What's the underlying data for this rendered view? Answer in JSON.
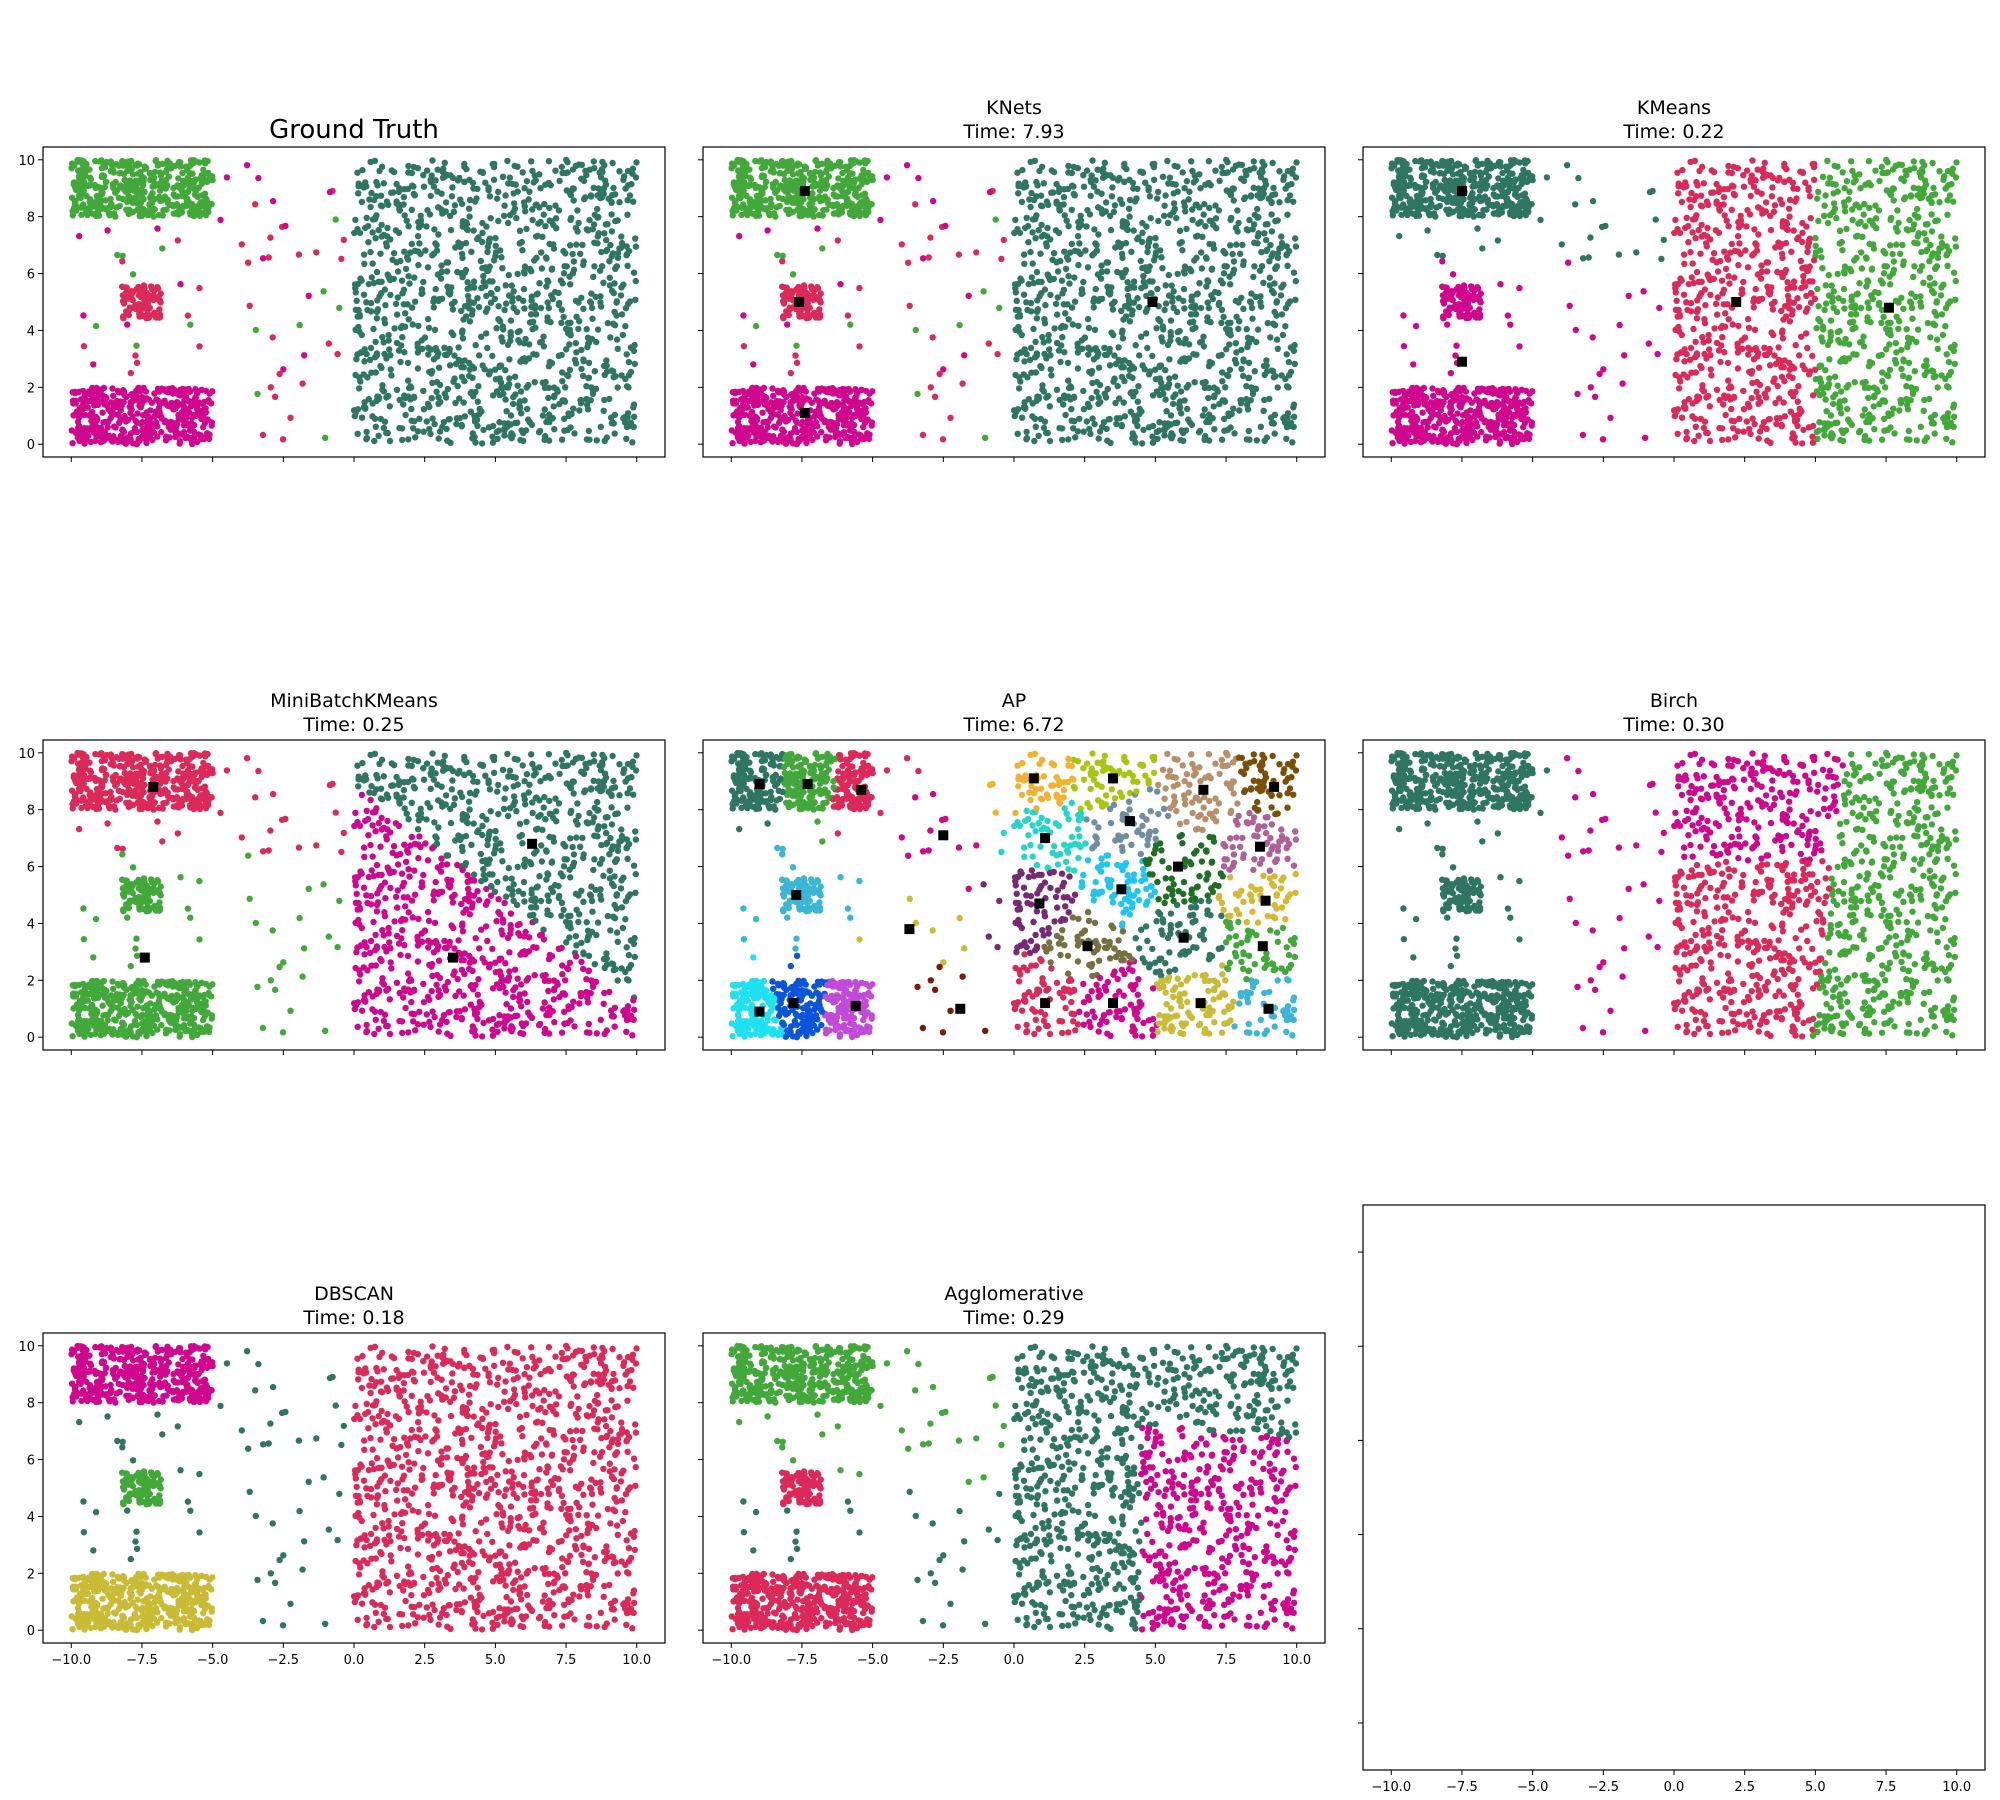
{
  "figure": {
    "color_palette": [
      "#2e7562",
      "#42a83a",
      "#db2a5a",
      "#d1068f",
      "#c9bb35",
      "#3bb6d6",
      "#1ee2f2",
      "#0b55d9",
      "#c24ad8",
      "#7a1a0b",
      "#f2b230",
      "#a7c70f",
      "#b7906a",
      "#7a5009",
      "#24d6c9",
      "#6f8fa0",
      "#ae6199",
      "#752a73",
      "#21c6f0",
      "#1f6e26",
      "#d8b833",
      "#767040"
    ]
  },
  "chart_data": [
    {
      "type": "scatter",
      "title": "Ground Truth",
      "subtitle": "",
      "xlim": [
        -11,
        11
      ],
      "ylim": [
        -0.45,
        10.45
      ],
      "xticks": [
        -10.0,
        -7.5,
        -5.0,
        -2.5,
        0.0,
        2.5,
        5.0,
        7.5,
        10.0
      ],
      "xtick_labels": [
        "",
        "",
        "",
        "",
        "",
        "",
        "",
        "",
        ""
      ],
      "yticks": [
        0,
        2,
        4,
        6,
        8,
        10
      ],
      "ytick_labels": [
        "0",
        "2",
        "4",
        "6",
        "8",
        "10"
      ],
      "partition": "gt",
      "series_colors": {
        "top": "#42a83a",
        "center": "#db2a5a",
        "bottom": "#d1068f",
        "noise": "#42a83a",
        "noise_alt": "#db2a5a",
        "noise_alt2": "#d1068f",
        "right": "#2e7562"
      },
      "centroids": []
    },
    {
      "type": "scatter",
      "title": "KNets",
      "subtitle": "Time: 7.93",
      "xlim": [
        -11,
        11
      ],
      "ylim": [
        -0.45,
        10.45
      ],
      "xticks": [
        -10.0,
        -7.5,
        -5.0,
        -2.5,
        0.0,
        2.5,
        5.0,
        7.5,
        10.0
      ],
      "xtick_labels": [
        "",
        "",
        "",
        "",
        "",
        "",
        "",
        "",
        ""
      ],
      "yticks": [
        0,
        2,
        4,
        6,
        8,
        10
      ],
      "ytick_labels": [
        "",
        "",
        "",
        "",
        "",
        ""
      ],
      "partition": "gt",
      "series_colors": {
        "top": "#42a83a",
        "center": "#db2a5a",
        "bottom": "#d1068f",
        "noise": "#42a83a",
        "noise_alt": "#db2a5a",
        "noise_alt2": "#d1068f",
        "right": "#2e7562"
      },
      "centroids": [
        [
          -7.4,
          8.9
        ],
        [
          -7.6,
          5.0
        ],
        [
          -7.4,
          1.1
        ],
        [
          4.9,
          5.0
        ]
      ]
    },
    {
      "type": "scatter",
      "title": "KMeans",
      "subtitle": "Time: 0.22",
      "xlim": [
        -11,
        11
      ],
      "ylim": [
        -0.45,
        10.45
      ],
      "xticks": [
        -10.0,
        -7.5,
        -5.0,
        -2.5,
        0.0,
        2.5,
        5.0,
        7.5,
        10.0
      ],
      "xtick_labels": [
        "",
        "",
        "",
        "",
        "",
        "",
        "",
        "",
        ""
      ],
      "yticks": [
        0,
        2,
        4,
        6,
        8,
        10
      ],
      "ytick_labels": [
        "",
        "",
        "",
        "",
        "",
        ""
      ],
      "partition": "kmeans",
      "series_colors": {
        "top": "#2e7562",
        "center": "#d1068f",
        "bottom": "#d1068f",
        "noise": "#2e7562",
        "noise_alt": "#d1068f",
        "noise_alt2": "#2e7562",
        "right_a": "#db2a5a",
        "right_b": "#42a83a"
      },
      "centroids": [
        [
          -7.5,
          8.9
        ],
        [
          -7.5,
          2.9
        ],
        [
          2.2,
          5.0
        ],
        [
          7.6,
          4.8
        ]
      ]
    },
    {
      "type": "scatter",
      "title": "MiniBatchKMeans",
      "subtitle": "Time: 0.25",
      "xlim": [
        -11,
        11
      ],
      "ylim": [
        -0.45,
        10.45
      ],
      "xticks": [
        -10.0,
        -7.5,
        -5.0,
        -2.5,
        0.0,
        2.5,
        5.0,
        7.5,
        10.0
      ],
      "xtick_labels": [
        "",
        "",
        "",
        "",
        "",
        "",
        "",
        "",
        ""
      ],
      "yticks": [
        0,
        2,
        4,
        6,
        8,
        10
      ],
      "ytick_labels": [
        "0",
        "2",
        "4",
        "6",
        "8",
        "10"
      ],
      "partition": "minibatch",
      "series_colors": {
        "top": "#db2a5a",
        "center": "#42a83a",
        "bottom": "#42a83a",
        "noise": "#42a83a",
        "noise_alt": "#db2a5a",
        "noise_alt2": "#42a83a",
        "right_a": "#2e7562",
        "right_b": "#d1068f"
      },
      "centroids": [
        [
          -7.1,
          8.8
        ],
        [
          -7.4,
          2.8
        ],
        [
          6.3,
          6.8
        ],
        [
          3.5,
          2.8
        ]
      ]
    },
    {
      "type": "scatter",
      "title": "AP",
      "subtitle": "Time: 6.72",
      "xlim": [
        -11,
        11
      ],
      "ylim": [
        -0.45,
        10.45
      ],
      "xticks": [
        -10.0,
        -7.5,
        -5.0,
        -2.5,
        0.0,
        2.5,
        5.0,
        7.5,
        10.0
      ],
      "xtick_labels": [
        "",
        "",
        "",
        "",
        "",
        "",
        "",
        "",
        ""
      ],
      "yticks": [
        0,
        2,
        4,
        6,
        8,
        10
      ],
      "ytick_labels": [
        "",
        "",
        "",
        "",
        "",
        ""
      ],
      "partition": "ap",
      "series_colors": {},
      "centroids": [
        [
          -9.0,
          8.9
        ],
        [
          -7.3,
          8.9
        ],
        [
          -5.4,
          8.7
        ],
        [
          -2.5,
          7.1
        ],
        [
          -3.7,
          3.8
        ],
        [
          -7.7,
          5.0
        ],
        [
          -9.0,
          0.9
        ],
        [
          -7.8,
          1.2
        ],
        [
          -5.6,
          1.1
        ],
        [
          -1.9,
          1.0
        ],
        [
          0.7,
          9.1
        ],
        [
          3.5,
          9.1
        ],
        [
          6.7,
          8.7
        ],
        [
          9.2,
          8.8
        ],
        [
          1.1,
          7.0
        ],
        [
          4.1,
          7.6
        ],
        [
          8.7,
          6.7
        ],
        [
          0.9,
          4.7
        ],
        [
          3.8,
          5.2
        ],
        [
          5.8,
          6.0
        ],
        [
          8.9,
          4.8
        ],
        [
          2.6,
          3.2
        ],
        [
          6.0,
          3.5
        ],
        [
          8.8,
          3.2
        ],
        [
          1.1,
          1.2
        ],
        [
          3.5,
          1.2
        ],
        [
          6.6,
          1.2
        ],
        [
          9.0,
          1.0
        ]
      ]
    },
    {
      "type": "scatter",
      "title": "Birch",
      "subtitle": "Time: 0.30",
      "xlim": [
        -11,
        11
      ],
      "ylim": [
        -0.45,
        10.45
      ],
      "xticks": [
        -10.0,
        -7.5,
        -5.0,
        -2.5,
        0.0,
        2.5,
        5.0,
        7.5,
        10.0
      ],
      "xtick_labels": [
        "",
        "",
        "",
        "",
        "",
        "",
        "",
        "",
        ""
      ],
      "yticks": [
        0,
        2,
        4,
        6,
        8,
        10
      ],
      "ytick_labels": [
        "",
        "",
        "",
        "",
        "",
        ""
      ],
      "partition": "birch",
      "series_colors": {
        "top": "#2e7562",
        "center": "#2e7562",
        "bottom": "#2e7562",
        "noise": "#2e7562",
        "noise_alt": "#d1068f",
        "noise_alt2": "#2e7562",
        "right_a": "#d1068f",
        "right_b": "#db2a5a",
        "right_c": "#42a83a"
      },
      "centroids": []
    },
    {
      "type": "scatter",
      "title": "DBSCAN",
      "subtitle": "Time: 0.18",
      "xlim": [
        -11,
        11
      ],
      "ylim": [
        -0.45,
        10.45
      ],
      "xticks": [
        -10.0,
        -7.5,
        -5.0,
        -2.5,
        0.0,
        2.5,
        5.0,
        7.5,
        10.0
      ],
      "xtick_labels": [
        "−10.0",
        "−7.5",
        "−5.0",
        "−2.5",
        "0.0",
        "2.5",
        "5.0",
        "7.5",
        "10.0"
      ],
      "yticks": [
        0,
        2,
        4,
        6,
        8,
        10
      ],
      "ytick_labels": [
        "0",
        "2",
        "4",
        "6",
        "8",
        "10"
      ],
      "partition": "gt",
      "series_colors": {
        "top": "#d1068f",
        "center": "#42a83a",
        "bottom": "#c9bb35",
        "noise": "#2e7562",
        "noise_alt": "#2e7562",
        "noise_alt2": "#2e7562",
        "right": "#db2a5a"
      },
      "centroids": []
    },
    {
      "type": "scatter",
      "title": "Agglomerative",
      "subtitle": "Time: 0.29",
      "xlim": [
        -11,
        11
      ],
      "ylim": [
        -0.45,
        10.45
      ],
      "xticks": [
        -10.0,
        -7.5,
        -5.0,
        -2.5,
        0.0,
        2.5,
        5.0,
        7.5,
        10.0
      ],
      "xtick_labels": [
        "−10.0",
        "−7.5",
        "−5.0",
        "−2.5",
        "0.0",
        "2.5",
        "5.0",
        "7.5",
        "10.0"
      ],
      "yticks": [
        0,
        2,
        4,
        6,
        8,
        10
      ],
      "ytick_labels": [
        "",
        "",
        "",
        "",
        "",
        ""
      ],
      "partition": "agglo",
      "series_colors": {
        "top": "#42a83a",
        "center": "#db2a5a",
        "bottom": "#db2a5a",
        "noise": "#42a83a",
        "noise_alt": "#2e7562",
        "noise_alt2": "#db2a5a",
        "right_a": "#2e7562",
        "right_b": "#d1068f"
      },
      "centroids": []
    },
    {
      "type": "scatter",
      "title": "",
      "subtitle": "",
      "xlim": [
        -11,
        11
      ],
      "ylim": [
        -0.45,
        10.45
      ],
      "xticks": [
        -10.0,
        -7.5,
        -5.0,
        -2.5,
        0.0,
        2.5,
        5.0,
        7.5,
        10.0
      ],
      "xtick_labels": [
        "−10.0",
        "−7.5",
        "−5.0",
        "−2.5",
        "0.0",
        "2.5",
        "5.0",
        "7.5",
        "10.0"
      ],
      "yticks": [
        0,
        2,
        4,
        6,
        8,
        10
      ],
      "ytick_labels": [
        "",
        "",
        "",
        "",
        "",
        ""
      ],
      "partition": "empty",
      "series_colors": {},
      "centroids": []
    }
  ]
}
